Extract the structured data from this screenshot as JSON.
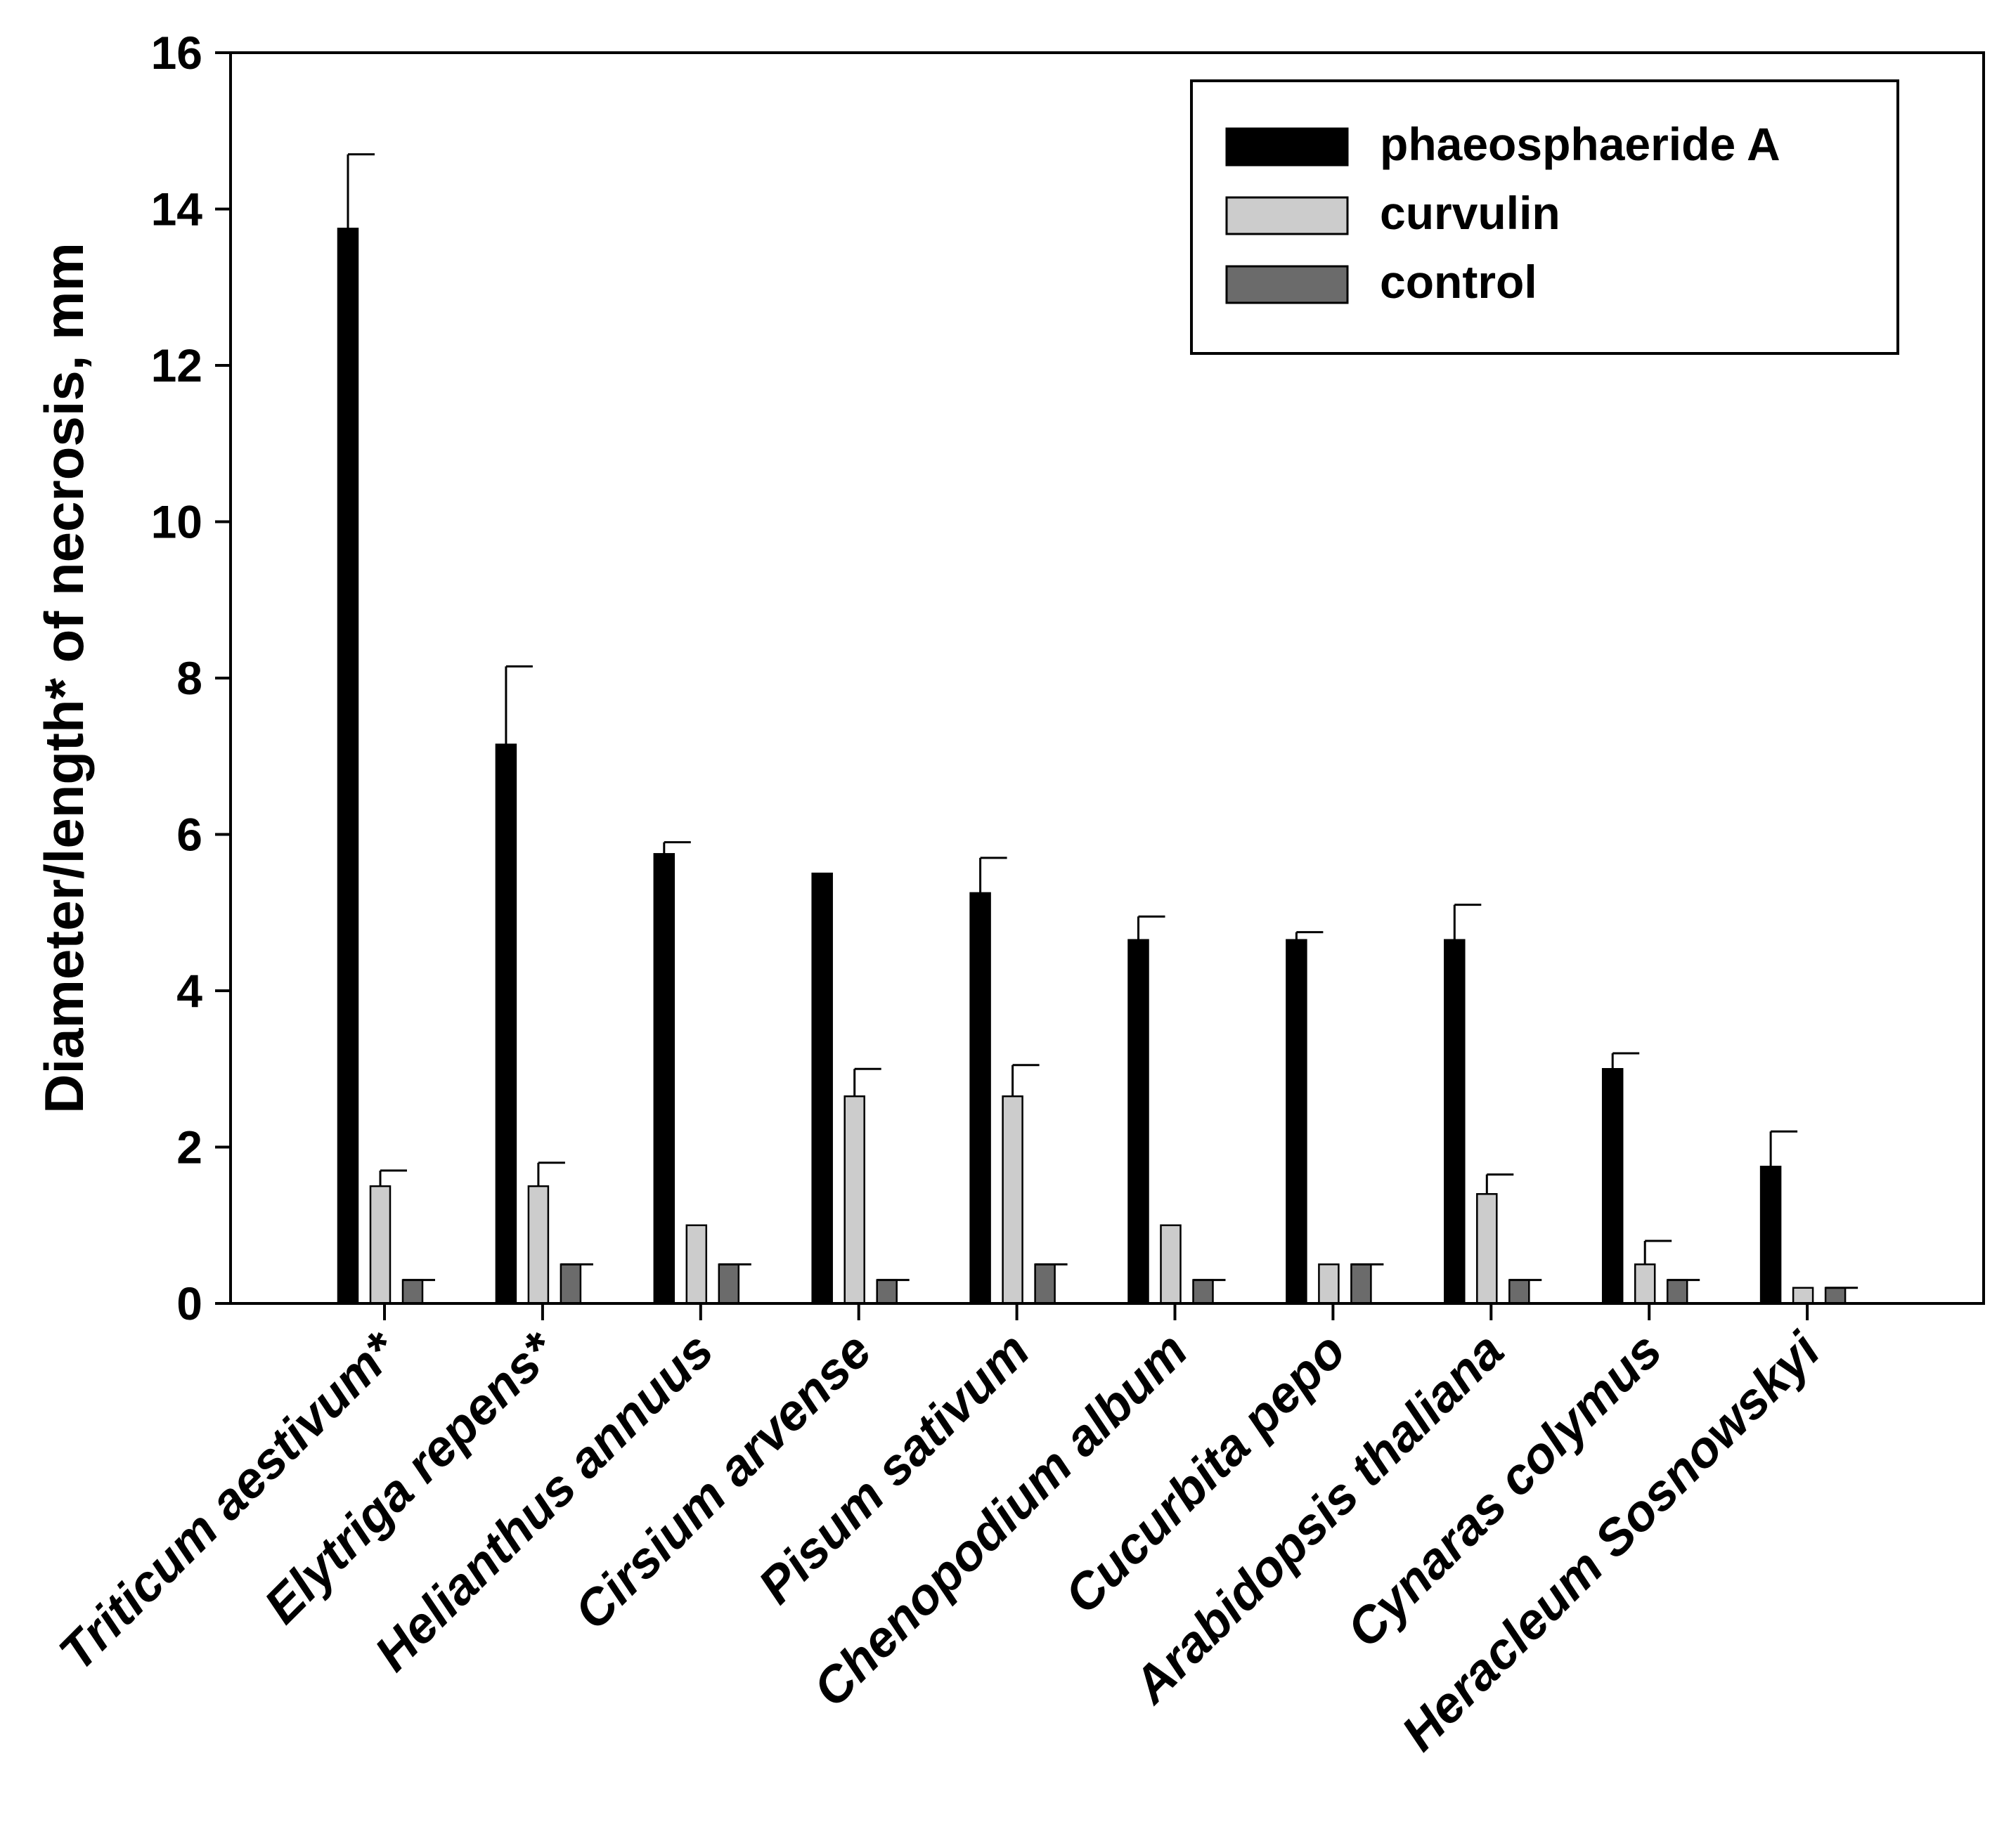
{
  "chart_data": {
    "type": "bar",
    "title": "",
    "xlabel": "",
    "ylabel": "Diameter/length* of necrosis, mm",
    "ylim": [
      0,
      16
    ],
    "yticks": [
      "0",
      "2",
      "4",
      "6",
      "8",
      "10",
      "12",
      "14",
      "16"
    ],
    "legend_position": "top-right",
    "categories": [
      "Triticum aestivum*",
      "Elytriga repens*",
      "Helianthus annuus",
      "Cirsium arvense",
      "Pisum sativum",
      "Chenopodium album",
      "Cucurbita pepo",
      "Arabidopsis thaliana",
      "Cynaras colymus",
      "Heracleum Sosnowskyi"
    ],
    "series": [
      {
        "name": "phaeosphaeride A",
        "color": "#000000",
        "values": [
          13.75,
          7.15,
          5.75,
          5.5,
          5.25,
          4.65,
          4.65,
          4.65,
          3.0,
          1.75
        ],
        "errors": [
          0.95,
          1.0,
          0.15,
          0.0,
          0.45,
          0.3,
          0.1,
          0.45,
          0.2,
          0.45
        ]
      },
      {
        "name": "curvulin",
        "color": "#cccccc",
        "values": [
          1.5,
          1.5,
          1.0,
          2.65,
          2.65,
          1.0,
          0.5,
          1.4,
          0.5,
          0.2
        ],
        "errors": [
          0.2,
          0.3,
          0.0,
          0.35,
          0.4,
          0.0,
          0.0,
          0.25,
          0.3,
          0.0
        ]
      },
      {
        "name": "control",
        "color": "#6b6b6b",
        "values": [
          0.3,
          0.5,
          0.5,
          0.3,
          0.5,
          0.3,
          0.5,
          0.3,
          0.3,
          0.2
        ],
        "errors": [
          0.0,
          0.0,
          0.0,
          0.0,
          0.0,
          0.0,
          0.0,
          0.0,
          0.0,
          0.0
        ]
      }
    ]
  }
}
